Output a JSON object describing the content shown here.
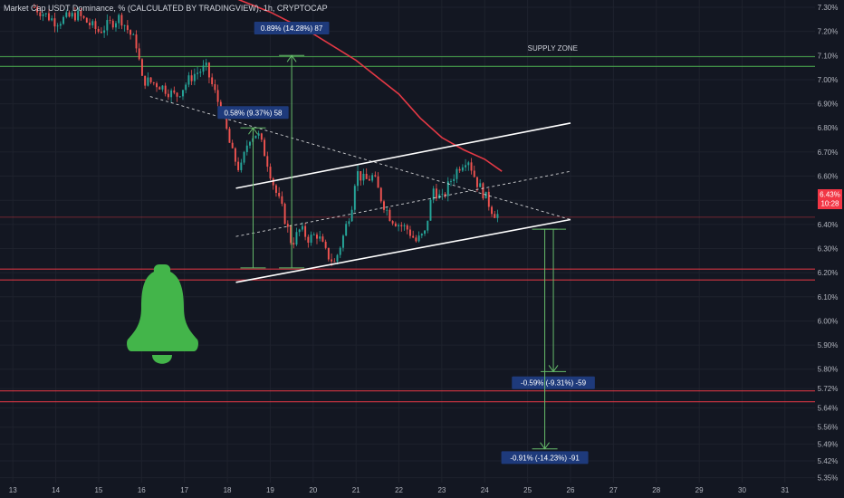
{
  "header": {
    "title": "Market Cap USDT Dominance, % (CALCULATED BY TRADINGVIEW), 1h, CRYPTOCAP"
  },
  "colors": {
    "background": "#131722",
    "grid": "#1e222d",
    "up": "#26a69a",
    "down": "#ef5350",
    "channel": "#ffffff",
    "ma": "#e53945",
    "zone_green": "#4caf50",
    "zone_red": "#e53945",
    "measure": "#66bb6a",
    "label_bg": "#1e3a7b",
    "price_tag": "#f23645",
    "bell": "#43b54a"
  },
  "chart_data": {
    "type": "candlestick",
    "title": "Market Cap USDT Dominance, % (CALCULATED BY TRADINGVIEW), 1h, CRYPTOCAP",
    "timeframe": "1h",
    "x_ticks": [
      "13",
      "14",
      "15",
      "16",
      "17",
      "18",
      "19",
      "20",
      "21",
      "22",
      "23",
      "24",
      "25",
      "26",
      "27",
      "28",
      "29",
      "30",
      "31"
    ],
    "y_ticks": [
      "7.30%",
      "7.20%",
      "7.10%",
      "7.00%",
      "6.90%",
      "6.80%",
      "6.70%",
      "6.60%",
      "6.50%",
      "6.40%",
      "6.30%",
      "6.20%",
      "6.10%",
      "6.00%",
      "5.90%",
      "5.80%",
      "5.72%",
      "5.64%",
      "5.56%",
      "5.49%",
      "5.42%",
      "5.35%"
    ],
    "ylim": [
      5.33,
      7.33
    ],
    "xlim": [
      12.7,
      31.7
    ],
    "grid": true,
    "close_path": [
      [
        13.5,
        7.3
      ],
      [
        14.0,
        7.24
      ],
      [
        14.5,
        7.27
      ],
      [
        15.0,
        7.2
      ],
      [
        15.5,
        7.26
      ],
      [
        15.9,
        7.14
      ],
      [
        16.0,
        7.0
      ],
      [
        16.4,
        6.98
      ],
      [
        16.8,
        6.93
      ],
      [
        17.2,
        7.02
      ],
      [
        17.5,
        7.05
      ],
      [
        17.7,
        6.95
      ],
      [
        17.9,
        6.85
      ],
      [
        18.1,
        6.7
      ],
      [
        18.3,
        6.62
      ],
      [
        18.5,
        6.76
      ],
      [
        18.7,
        6.78
      ],
      [
        18.9,
        6.68
      ],
      [
        19.1,
        6.55
      ],
      [
        19.3,
        6.45
      ],
      [
        19.5,
        6.32
      ],
      [
        19.7,
        6.38
      ],
      [
        19.9,
        6.34
      ],
      [
        20.1,
        6.36
      ],
      [
        20.3,
        6.28
      ],
      [
        20.5,
        6.24
      ],
      [
        20.7,
        6.35
      ],
      [
        20.9,
        6.48
      ],
      [
        21.0,
        6.62
      ],
      [
        21.2,
        6.58
      ],
      [
        21.4,
        6.6
      ],
      [
        21.6,
        6.5
      ],
      [
        21.8,
        6.43
      ],
      [
        22.0,
        6.4
      ],
      [
        22.2,
        6.38
      ],
      [
        22.4,
        6.33
      ],
      [
        22.6,
        6.36
      ],
      [
        22.8,
        6.55
      ],
      [
        23.0,
        6.5
      ],
      [
        23.2,
        6.58
      ],
      [
        23.4,
        6.64
      ],
      [
        23.6,
        6.68
      ],
      [
        23.8,
        6.58
      ],
      [
        24.0,
        6.52
      ],
      [
        24.2,
        6.45
      ],
      [
        24.3,
        6.44
      ]
    ],
    "candle_count": 160,
    "price_tag": {
      "value": "6.43%",
      "countdown": "10:28"
    },
    "horizontal_lines": [
      {
        "name": "supply-zone-top",
        "y": 7.095,
        "color": "green"
      },
      {
        "name": "supply-zone-bottom",
        "y": 7.055,
        "color": "green"
      },
      {
        "name": "support-top",
        "y": 6.215,
        "color": "red"
      },
      {
        "name": "support-bottom",
        "y": 6.17,
        "color": "red"
      },
      {
        "name": "target-zone-top",
        "y": 5.71,
        "color": "red"
      },
      {
        "name": "target-zone-bottom",
        "y": 5.665,
        "color": "red"
      },
      {
        "name": "last-price",
        "y": 6.43,
        "color": "red"
      }
    ],
    "trendlines": [
      {
        "name": "channel-upper",
        "style": "solid",
        "from": [
          18.2,
          6.55
        ],
        "to": [
          26.0,
          6.82
        ]
      },
      {
        "name": "channel-lower",
        "style": "solid",
        "from": [
          18.2,
          6.16
        ],
        "to": [
          26.0,
          6.42
        ]
      },
      {
        "name": "channel-mid",
        "style": "dashed",
        "from": [
          18.2,
          6.35
        ],
        "to": [
          26.0,
          6.62
        ]
      },
      {
        "name": "descending-trend",
        "style": "dashed",
        "from": [
          16.2,
          6.93
        ],
        "to": [
          26.0,
          6.42
        ]
      }
    ],
    "moving_average": [
      [
        18.0,
        7.35
      ],
      [
        19.0,
        7.28
      ],
      [
        20.0,
        7.19
      ],
      [
        21.0,
        7.08
      ],
      [
        22.0,
        6.94
      ],
      [
        22.5,
        6.84
      ],
      [
        23.0,
        6.76
      ],
      [
        23.5,
        6.71
      ],
      [
        24.0,
        6.67
      ],
      [
        24.4,
        6.62
      ]
    ],
    "measurements": [
      {
        "label": "0.89% (14.28%) 87",
        "x": 19.5,
        "from": 6.22,
        "to": 7.1,
        "label_at": 7.21
      },
      {
        "label": "0.58% (9.37%) 58",
        "x": 18.6,
        "from": 6.22,
        "to": 6.8,
        "label_at": 6.86
      },
      {
        "label": "-0.59% (-9.31%) -59",
        "x": 25.6,
        "from": 6.38,
        "to": 5.79,
        "label_at": 5.74
      },
      {
        "label": "-0.91% (-14.23%) -91",
        "x": 25.4,
        "from": 6.38,
        "to": 5.47,
        "label_at": 5.43
      }
    ],
    "annotations": [
      {
        "text": "SUPPLY ZONE",
        "x": 25.0,
        "y": 7.105
      }
    ]
  }
}
